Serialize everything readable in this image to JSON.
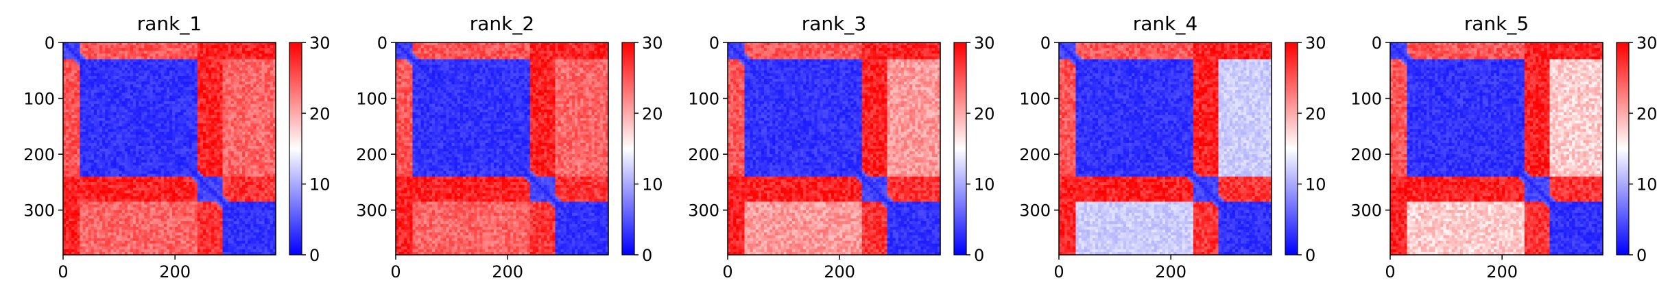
{
  "chart_data": [
    {
      "type": "heatmap",
      "title": "rank_1",
      "xticks": [
        0,
        200
      ],
      "yticks": [
        0,
        100,
        200,
        300
      ],
      "xlim": [
        0,
        380
      ],
      "ylim": [
        380,
        0
      ],
      "colorbar": {
        "ticks": [
          0,
          10,
          20,
          30
        ],
        "range": [
          0,
          30
        ],
        "cmap": "bwr"
      },
      "domains": [
        [
          0,
          30
        ],
        [
          30,
          240
        ],
        [
          240,
          285
        ],
        [
          285,
          380
        ]
      ],
      "block_values": [
        [
          4,
          25,
          28,
          28
        ],
        [
          25,
          3,
          28,
          24
        ],
        [
          28,
          28,
          4,
          27
        ],
        [
          28,
          24,
          27,
          3
        ]
      ]
    },
    {
      "type": "heatmap",
      "title": "rank_2",
      "xticks": [
        0,
        200
      ],
      "yticks": [
        0,
        100,
        200,
        300
      ],
      "xlim": [
        0,
        380
      ],
      "ylim": [
        380,
        0
      ],
      "colorbar": {
        "ticks": [
          0,
          10,
          20,
          30
        ],
        "range": [
          0,
          30
        ],
        "cmap": "bwr"
      },
      "domains": [
        [
          0,
          30
        ],
        [
          30,
          240
        ],
        [
          240,
          285
        ],
        [
          285,
          380
        ]
      ],
      "block_values": [
        [
          4,
          25,
          28,
          28
        ],
        [
          25,
          3,
          28,
          24
        ],
        [
          28,
          28,
          4,
          27
        ],
        [
          28,
          24,
          27,
          3
        ]
      ]
    },
    {
      "type": "heatmap",
      "title": "rank_3",
      "xticks": [
        0,
        200
      ],
      "yticks": [
        0,
        100,
        200,
        300
      ],
      "xlim": [
        0,
        380
      ],
      "ylim": [
        380,
        0
      ],
      "colorbar": {
        "ticks": [
          0,
          10,
          20,
          30
        ],
        "range": [
          0,
          30
        ],
        "cmap": "bwr"
      },
      "domains": [
        [
          0,
          30
        ],
        [
          30,
          240
        ],
        [
          240,
          285
        ],
        [
          285,
          380
        ]
      ],
      "block_values": [
        [
          4,
          25,
          28,
          28
        ],
        [
          25,
          3,
          28,
          21
        ],
        [
          28,
          28,
          4,
          27
        ],
        [
          28,
          21,
          27,
          3
        ]
      ]
    },
    {
      "type": "heatmap",
      "title": "rank_4",
      "xticks": [
        0,
        200
      ],
      "yticks": [
        0,
        100,
        200,
        300
      ],
      "xlim": [
        0,
        380
      ],
      "ylim": [
        380,
        0
      ],
      "colorbar": {
        "ticks": [
          0,
          10,
          20,
          30
        ],
        "range": [
          0,
          30
        ],
        "cmap": "bwr"
      },
      "domains": [
        [
          0,
          30
        ],
        [
          30,
          240
        ],
        [
          240,
          285
        ],
        [
          285,
          380
        ]
      ],
      "block_values": [
        [
          4,
          25,
          28,
          28
        ],
        [
          25,
          3,
          28,
          12
        ],
        [
          28,
          28,
          4,
          27
        ],
        [
          28,
          12,
          27,
          3
        ]
      ]
    },
    {
      "type": "heatmap",
      "title": "rank_5",
      "xticks": [
        0,
        200
      ],
      "yticks": [
        0,
        100,
        200,
        300
      ],
      "xlim": [
        0,
        380
      ],
      "ylim": [
        380,
        0
      ],
      "colorbar": {
        "ticks": [
          0,
          10,
          20,
          30
        ],
        "range": [
          0,
          30
        ],
        "cmap": "bwr"
      },
      "domains": [
        [
          0,
          30
        ],
        [
          30,
          240
        ],
        [
          240,
          285
        ],
        [
          285,
          380
        ]
      ],
      "block_values": [
        [
          4,
          25,
          28,
          28
        ],
        [
          25,
          3,
          28,
          18
        ],
        [
          28,
          28,
          4,
          27
        ],
        [
          28,
          18,
          27,
          3
        ]
      ]
    }
  ]
}
